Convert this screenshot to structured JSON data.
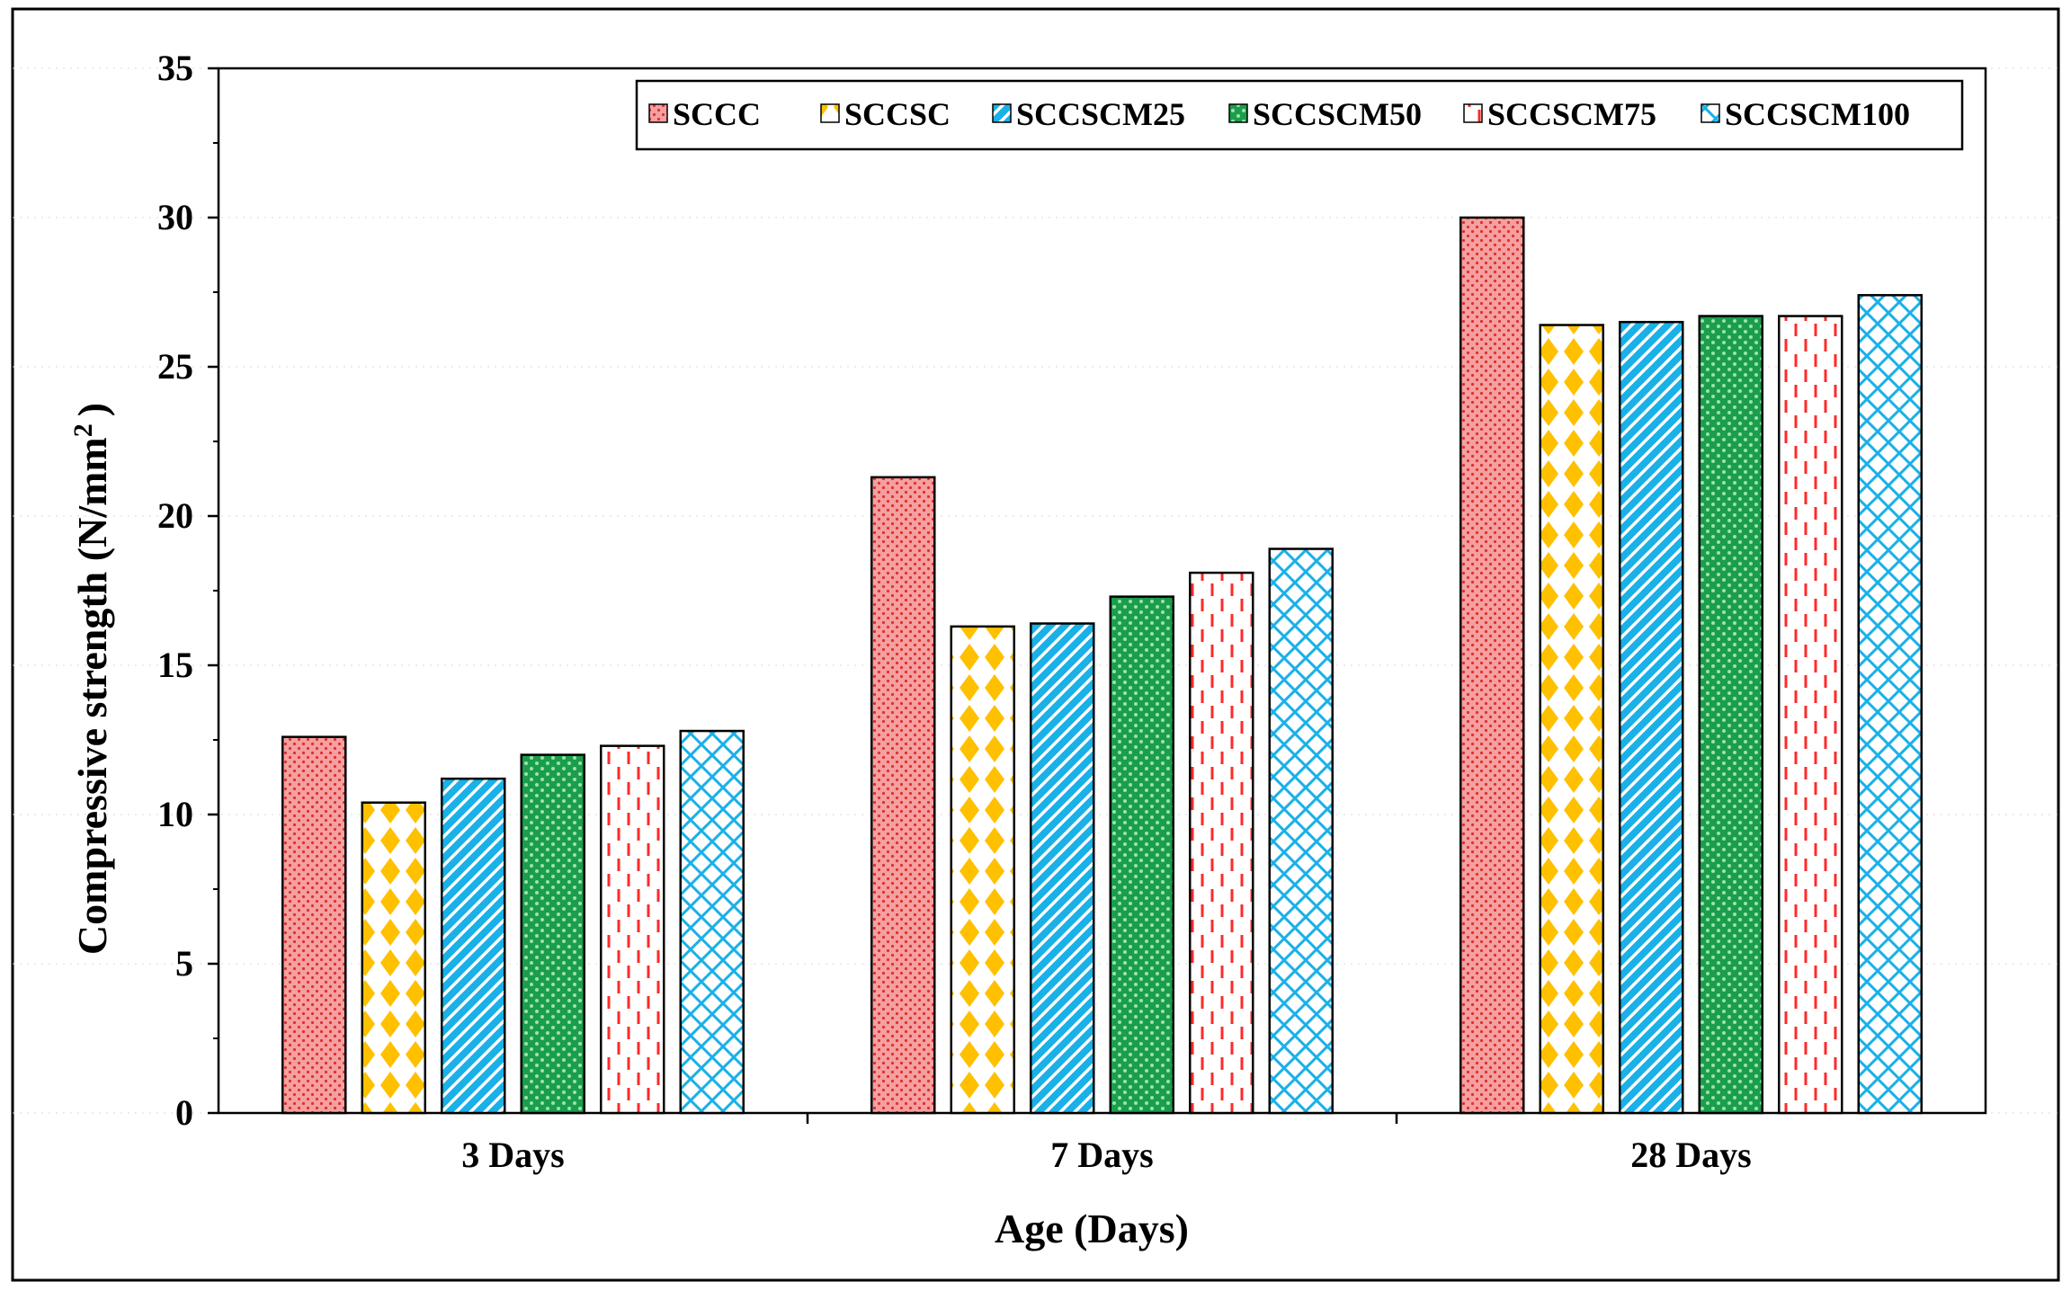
{
  "chart_data": {
    "type": "bar",
    "title": "",
    "xlabel": "Age (Days)",
    "ylabel": "Compressive strength (N/mm",
    "ylabel_sup": "2",
    "ylabel_close": ")",
    "ylim": [
      0,
      35
    ],
    "yticks": [
      0,
      5,
      10,
      15,
      20,
      25,
      30,
      35
    ],
    "categories": [
      "3 Days",
      "7 Days",
      "28 Days"
    ],
    "legend_position": "top-right",
    "series": [
      {
        "name": "SCCC",
        "values": [
          12.6,
          21.3,
          30.0
        ],
        "color": "#f08080",
        "pattern": "dots"
      },
      {
        "name": "SCCSC",
        "values": [
          10.4,
          16.3,
          26.4
        ],
        "color": "#ffc000",
        "pattern": "diamonds"
      },
      {
        "name": "SCCSCM25",
        "values": [
          11.2,
          16.4,
          26.5
        ],
        "color": "#1ab0e8",
        "pattern": "diagonal"
      },
      {
        "name": "SCCSCM50",
        "values": [
          12.0,
          17.3,
          26.7
        ],
        "color": "#1a9e4a",
        "pattern": "checker"
      },
      {
        "name": "SCCSCM75",
        "values": [
          12.3,
          18.1,
          26.7
        ],
        "color": "#ff3333",
        "pattern": "dashes"
      },
      {
        "name": "SCCSCM100",
        "values": [
          12.8,
          18.9,
          27.4
        ],
        "color": "#1ab0e8",
        "pattern": "crosshatch"
      }
    ]
  }
}
